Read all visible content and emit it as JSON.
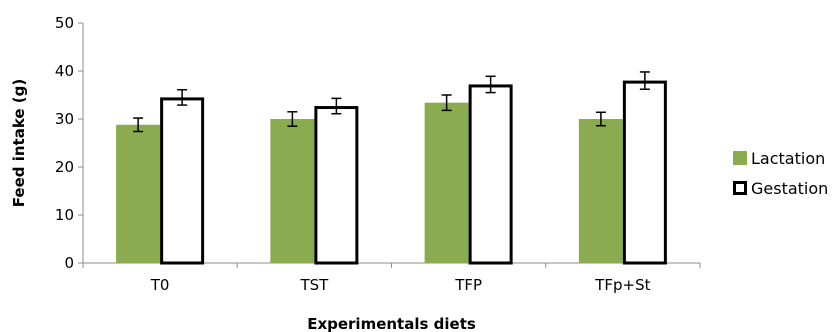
{
  "chart_data": {
    "type": "bar",
    "title": "",
    "xlabel": "Experimentals diets",
    "ylabel": "Feed intake (g)",
    "ylim": [
      0,
      50
    ],
    "yticks": [
      0,
      10,
      20,
      30,
      40,
      50
    ],
    "categories": [
      "T0",
      "TST",
      "TFP",
      "TFp+St"
    ],
    "series": [
      {
        "name": "Lactation",
        "values": [
          28.8,
          30.0,
          33.4,
          30.0
        ],
        "errors": [
          1.4,
          1.5,
          1.6,
          1.4
        ],
        "color": "#8aab4f"
      },
      {
        "name": "Gestation",
        "values": [
          34.5,
          32.7,
          37.2,
          38.0
        ],
        "errors": [
          1.6,
          1.6,
          1.7,
          1.8
        ],
        "color": "#ffffff"
      }
    ],
    "grid": false,
    "legend_position": "right"
  }
}
